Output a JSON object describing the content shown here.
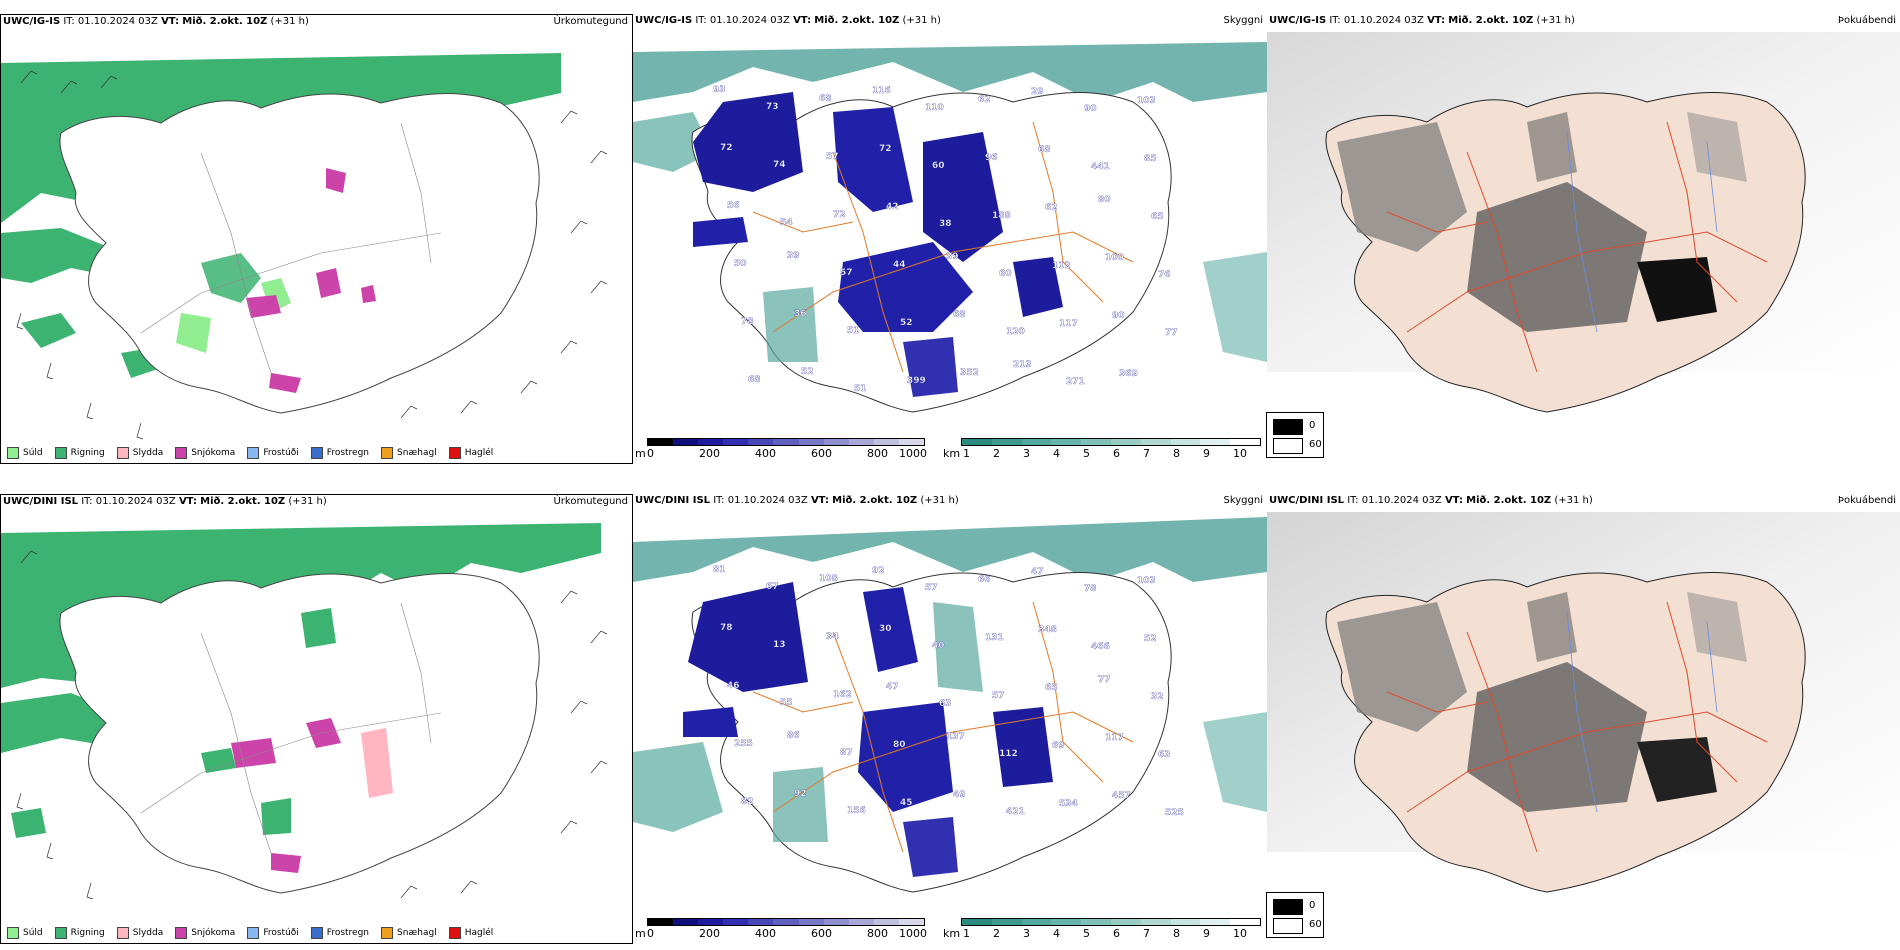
{
  "rows": [
    {
      "model": "UWC/IG-IS",
      "it_label": "IT:",
      "it_value": "01.10.2024 03Z",
      "vt_label": "VT:",
      "vt_value": "Mið. 2.okt. 10Z",
      "lead": "(+31 h)",
      "panels": [
        "Úrkomutegund",
        "Skyggni",
        "Þokuábendi"
      ],
      "cloud_labels": [
        "93",
        "73",
        "68",
        "116",
        "110",
        "62",
        "29",
        "90",
        "103",
        "72",
        "74",
        "57",
        "72",
        "60",
        "96",
        "68",
        "441",
        "85",
        "56",
        "54",
        "72",
        "42",
        "38",
        "188",
        "62",
        "80",
        "65",
        "50",
        "39",
        "57",
        "44",
        "39",
        "60",
        "112",
        "100",
        "76",
        "78",
        "36",
        "51",
        "52",
        "68",
        "120",
        "117",
        "90",
        "77",
        "68",
        "52",
        "51",
        "399",
        "352",
        "213",
        "271",
        "369"
      ],
      "cloud_labels_pos": []
    },
    {
      "model": "UWC/DINI ISL",
      "it_label": "IT:",
      "it_value": "01.10.2024 03Z",
      "vt_label": "VT:",
      "vt_value": "Mið. 2.okt. 10Z",
      "lead": "(+31 h)",
      "panels": [
        "Úrkomutegund",
        "Skyggni",
        "Þokuábendi"
      ],
      "cloud_labels": [
        "81",
        "67",
        "108",
        "92",
        "57",
        "66",
        "47",
        "78",
        "103",
        "78",
        "13",
        "34",
        "30",
        "40",
        "131",
        "348",
        "466",
        "52",
        "46",
        "55",
        "162",
        "47",
        "63",
        "57",
        "65",
        "77",
        "32",
        "255",
        "86",
        "87",
        "80",
        "137",
        "112",
        "69",
        "117",
        "63",
        "82",
        "92",
        "156",
        "45",
        "49",
        "421",
        "534",
        "457",
        "525"
      ],
      "cloud_labels_pos": []
    }
  ],
  "precip_legend": [
    {
      "label": "Súld",
      "color": "#90ee90"
    },
    {
      "label": "Rigning",
      "color": "#3cb371"
    },
    {
      "label": "Slydda",
      "color": "#ffb6c1"
    },
    {
      "label": "Snjókoma",
      "color": "#cc44aa"
    },
    {
      "label": "Frostúði",
      "color": "#87b8f0"
    },
    {
      "label": "Frostregn",
      "color": "#3a6ec8"
    },
    {
      "label": "Snæhagl",
      "color": "#f0a020"
    },
    {
      "label": "Haglél",
      "color": "#e01010"
    }
  ],
  "cloud_colorbar": {
    "unit": "m",
    "ticks": [
      "0",
      "200",
      "400",
      "600",
      "800",
      "1000"
    ],
    "colors": [
      "#000000",
      "#10107a",
      "#1c1c9c",
      "#3030b0",
      "#4848b8",
      "#6060c0",
      "#7878c8",
      "#9090d0",
      "#a8a8d8",
      "#c0c0e0",
      "#d8d8ea"
    ]
  },
  "vis_colorbar": {
    "unit": "km",
    "ticks": [
      "1",
      "2",
      "3",
      "4",
      "5",
      "6",
      "7",
      "8",
      "9",
      "10"
    ],
    "colors": [
      "#2a8a80",
      "#3e9a90",
      "#52a8a0",
      "#68b4ac",
      "#80c0b8",
      "#98ccc4",
      "#b0d8d2",
      "#c8e4e0",
      "#e0f0ee",
      "#ffffff"
    ]
  },
  "fog_key": {
    "labels": [
      "0",
      "60"
    ],
    "colors": [
      "#000000",
      "#ffffff"
    ]
  }
}
